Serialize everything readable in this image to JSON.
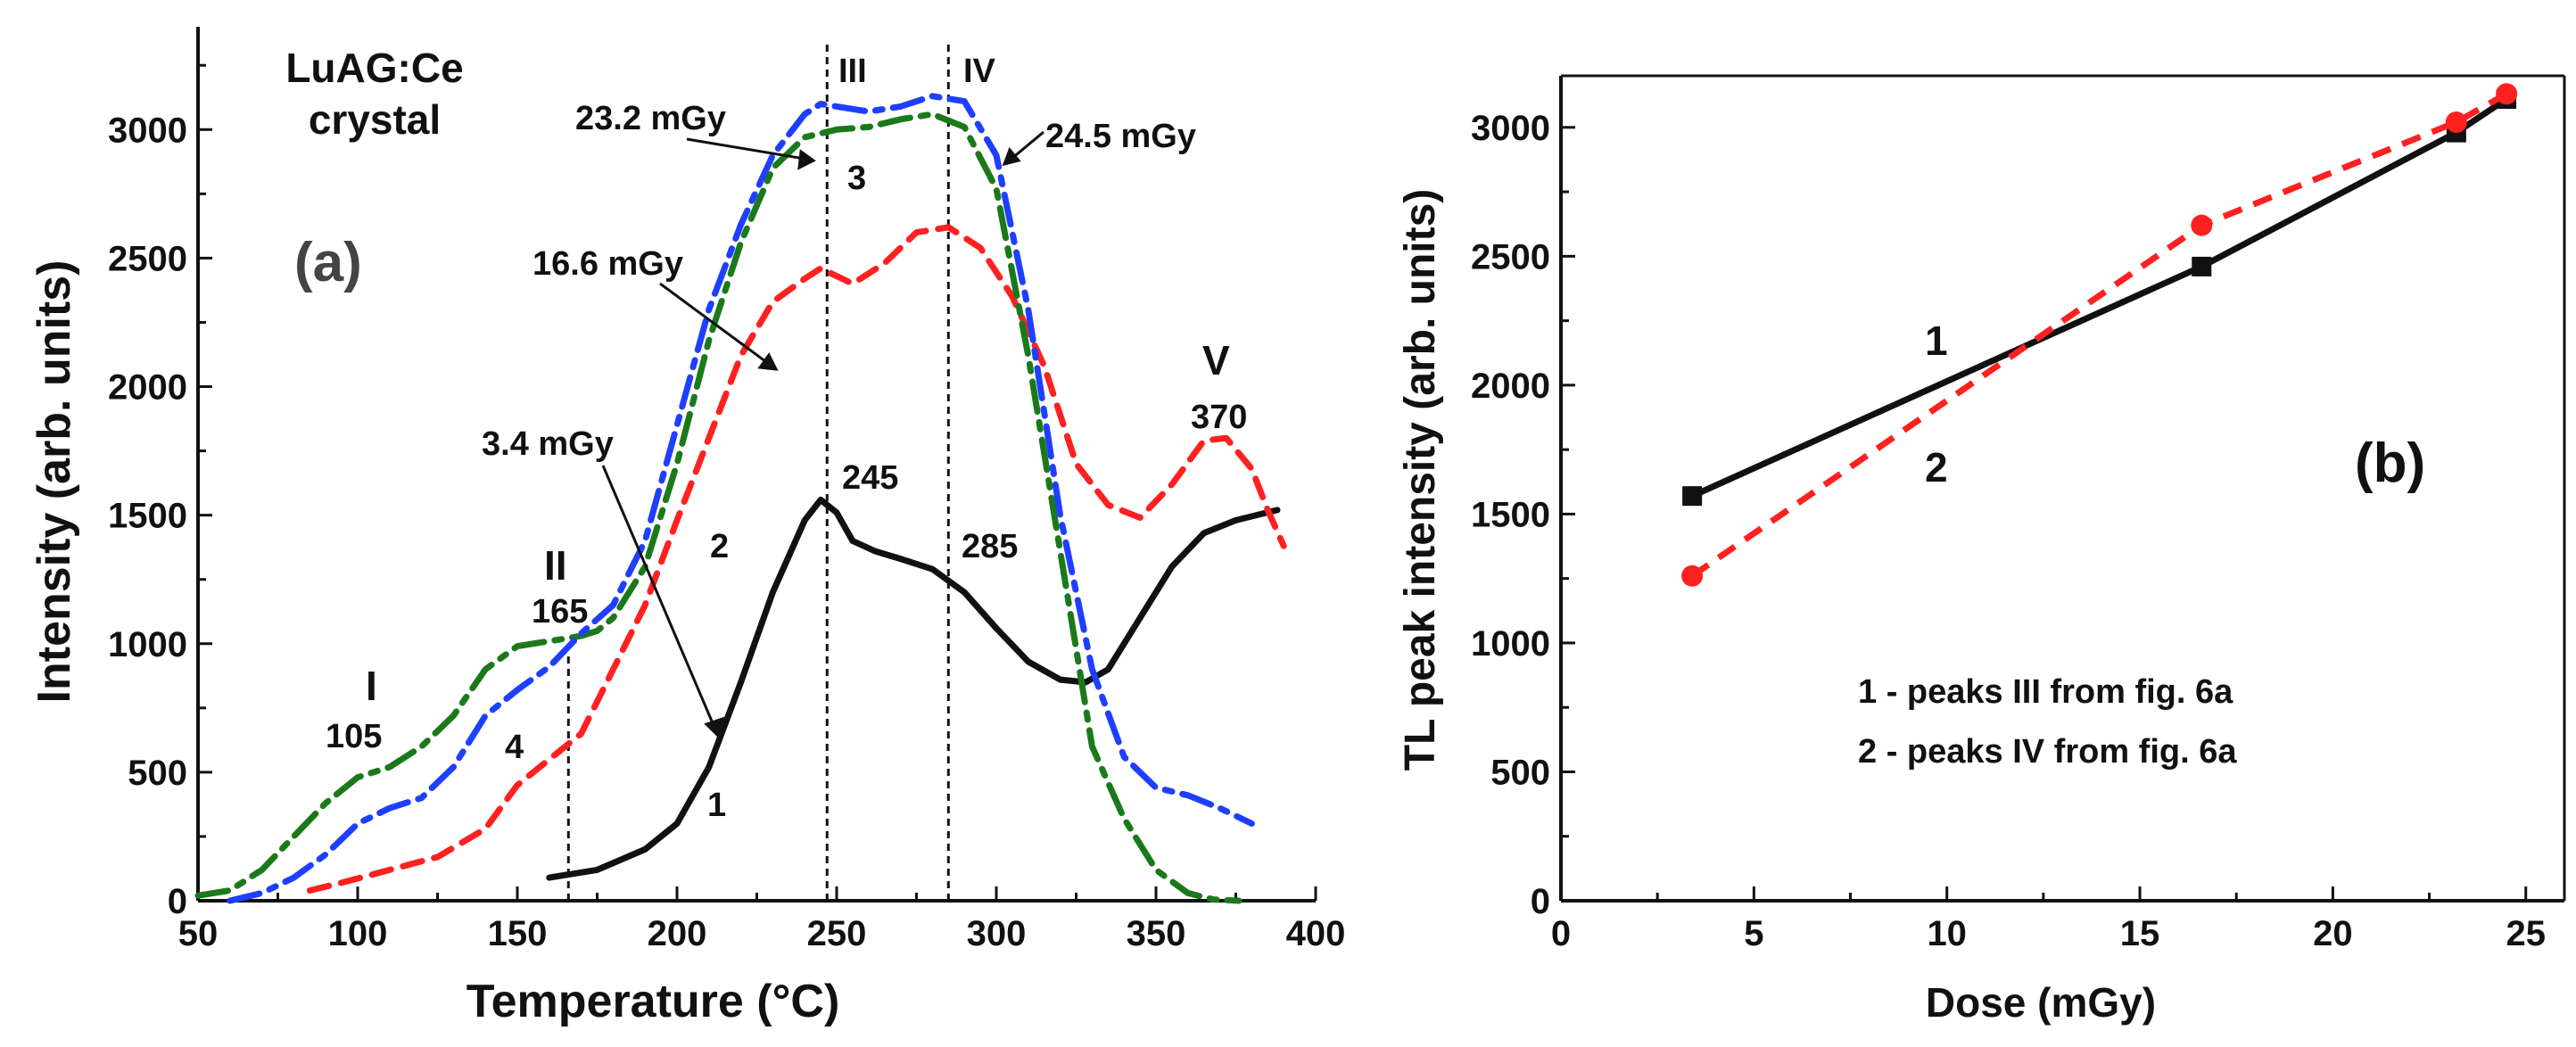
{
  "chart_data": [
    {
      "type": "line",
      "panel": "(a)",
      "sample_label": [
        "LuAG:Ce",
        "crystal"
      ],
      "xlabel": "Temperature (°C)",
      "ylabel": "Intensity (arb. units)",
      "xlim": [
        50,
        400
      ],
      "ylim": [
        0,
        3400
      ],
      "xticks": [
        50,
        100,
        150,
        200,
        250,
        300,
        350,
        400
      ],
      "yticks": [
        0,
        500,
        1000,
        1500,
        2000,
        2500,
        3000
      ],
      "grid": false,
      "colors": {
        "curve1": "#111111",
        "curve2": "#ff2020",
        "curve3": "#1a7a1a",
        "curve4": "#1f3fff"
      },
      "series": [
        {
          "name": "1",
          "dose": "3.4 mGy",
          "style": "solid",
          "x": [
            160,
            175,
            190,
            200,
            210,
            220,
            230,
            240,
            245,
            250,
            255,
            262,
            270,
            280,
            290,
            300,
            310,
            320,
            328,
            335,
            345,
            355,
            365,
            375,
            388
          ],
          "y": [
            90,
            120,
            200,
            300,
            520,
            850,
            1200,
            1480,
            1560,
            1510,
            1400,
            1360,
            1330,
            1290,
            1200,
            1060,
            930,
            860,
            850,
            900,
            1100,
            1300,
            1430,
            1480,
            1520
          ]
        },
        {
          "name": "2",
          "dose": "16.6 mGy",
          "style": "dashed",
          "x": [
            85,
            95,
            110,
            125,
            140,
            150,
            160,
            170,
            180,
            190,
            200,
            210,
            220,
            230,
            240,
            245,
            255,
            265,
            275,
            285,
            295,
            305,
            315,
            325,
            335,
            345,
            355,
            365,
            372,
            380,
            385,
            390
          ],
          "y": [
            40,
            70,
            120,
            170,
            280,
            450,
            550,
            650,
            900,
            1150,
            1480,
            1800,
            2120,
            2330,
            2420,
            2460,
            2400,
            2480,
            2600,
            2620,
            2540,
            2350,
            2080,
            1700,
            1540,
            1490,
            1620,
            1790,
            1800,
            1680,
            1520,
            1380
          ]
        },
        {
          "name": "3",
          "dose": "23.2 mGy",
          "style": "dash-dot",
          "x": [
            50,
            60,
            70,
            80,
            90,
            100,
            110,
            120,
            130,
            140,
            150,
            160,
            170,
            175,
            180,
            190,
            200,
            210,
            220,
            230,
            240,
            250,
            260,
            270,
            280,
            290,
            300,
            310,
            320,
            330,
            340,
            350,
            360,
            368,
            376
          ],
          "y": [
            20,
            40,
            120,
            250,
            380,
            480,
            520,
            600,
            720,
            900,
            990,
            1010,
            1030,
            1050,
            1100,
            1300,
            1700,
            2180,
            2560,
            2850,
            2970,
            3000,
            3010,
            3040,
            3060,
            3010,
            2770,
            2120,
            1360,
            600,
            320,
            120,
            30,
            5,
            0
          ]
        },
        {
          "name": "4",
          "dose": "24.5 mGy",
          "style": "dash-dot",
          "x": [
            60,
            70,
            80,
            90,
            100,
            110,
            120,
            130,
            140,
            150,
            160,
            170,
            180,
            190,
            200,
            210,
            220,
            230,
            240,
            245,
            250,
            260,
            270,
            280,
            290,
            300,
            310,
            320,
            330,
            340,
            350,
            360,
            370,
            380
          ],
          "y": [
            0,
            30,
            90,
            180,
            300,
            360,
            400,
            520,
            720,
            820,
            910,
            1040,
            1150,
            1400,
            1850,
            2300,
            2630,
            2900,
            3060,
            3100,
            3090,
            3070,
            3090,
            3130,
            3110,
            2900,
            2300,
            1500,
            900,
            560,
            440,
            410,
            360,
            300
          ]
        }
      ],
      "annotations": {
        "peak_labels": {
          "I": "I",
          "II": "II",
          "III": "III",
          "IV": "IV",
          "V": "V"
        },
        "temperature_labels": {
          "t105": "105",
          "t165": "165",
          "t245": "245",
          "t285": "285",
          "t370": "370"
        },
        "curve_numbers": {
          "c1": "1",
          "c2": "2",
          "c3": "3",
          "c4": "4"
        },
        "doses": {
          "d1": "3.4 mGy",
          "d2": "16.6 mGy",
          "d3": "23.2 mGy",
          "d4": "24.5 mGy"
        },
        "vlines": [
          166,
          247,
          285
        ]
      }
    },
    {
      "type": "line",
      "panel": "(b)",
      "xlabel": "Dose (mGy)",
      "ylabel": "TL peak intensity (arb. units)",
      "xlim": [
        0,
        26
      ],
      "ylim": [
        0,
        3200
      ],
      "xticks": [
        0,
        5,
        10,
        15,
        20,
        25
      ],
      "yticks": [
        0,
        500,
        1000,
        1500,
        2000,
        2500,
        3000
      ],
      "grid": false,
      "series": [
        {
          "name": "1",
          "style": "solid",
          "marker": "square",
          "color": "#111111",
          "x": [
            3.4,
            16.6,
            23.2,
            24.5
          ],
          "y": [
            1570,
            2460,
            2980,
            3110
          ]
        },
        {
          "name": "2",
          "style": "dashed",
          "marker": "circle",
          "color": "#ff2020",
          "x": [
            3.4,
            16.6,
            23.2,
            24.5
          ],
          "y": [
            1260,
            2620,
            3020,
            3130
          ]
        }
      ],
      "legend_text": [
        "1 - peaks III from fig. 6a",
        "2 - peaks IV from fig. 6a"
      ],
      "curve_numbers": {
        "c1": "1",
        "c2": "2"
      }
    }
  ]
}
